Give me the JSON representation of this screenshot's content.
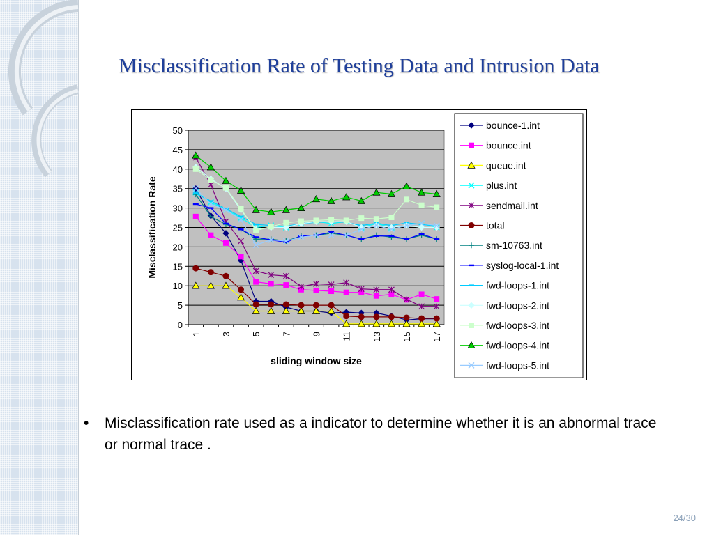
{
  "slide": {
    "title": "Misclassification Rate of Testing Data and Intrusion Data",
    "bullet": "Misclassification rate used as a indicator to determine whether it is an abnormal trace or normal trace .",
    "bullet_symbol": "•",
    "page": "24/30"
  },
  "chart_data": {
    "type": "line",
    "title": "",
    "xlabel": "sliding window size",
    "ylabel": "Misclassification Rate",
    "x": [
      1,
      2,
      3,
      4,
      5,
      6,
      7,
      8,
      9,
      10,
      11,
      12,
      13,
      14,
      15,
      16,
      17
    ],
    "x_tick_labels": [
      "1",
      "3",
      "5",
      "7",
      "9",
      "11",
      "13",
      "15",
      "17"
    ],
    "x_tick_values": [
      1,
      3,
      5,
      7,
      9,
      11,
      13,
      15,
      17
    ],
    "ylim": [
      0,
      50
    ],
    "y_ticks": [
      0,
      5,
      10,
      15,
      20,
      25,
      30,
      35,
      40,
      45,
      50
    ],
    "grid": "horizontal",
    "plot_background": "#c0c0c0",
    "legend_position": "right",
    "series": [
      {
        "name": "bounce-1.int",
        "color": "#000080",
        "marker": "diamond",
        "values": [
          35,
          28,
          23.5,
          16.5,
          6,
          6,
          4.5,
          3.5,
          3.5,
          3,
          3.2,
          3,
          3,
          2.2,
          1.2,
          1.5,
          1.5
        ]
      },
      {
        "name": "bounce.int",
        "color": "#ff00ff",
        "marker": "square",
        "values": [
          27.8,
          23,
          21,
          17.5,
          11,
          10.5,
          10.2,
          9,
          8.8,
          8.6,
          8.3,
          8.3,
          7.4,
          7.8,
          6.4,
          7.8,
          6.6
        ]
      },
      {
        "name": "queue.int",
        "color": "#ffff00",
        "marker": "triangle",
        "values": [
          10,
          10,
          10,
          7,
          3.5,
          3.5,
          3.5,
          3.5,
          3.5,
          3.5,
          0.2,
          0.2,
          0.2,
          0.2,
          0.2,
          0.2,
          0.2
        ]
      },
      {
        "name": "plus.int",
        "color": "#00ffff",
        "marker": "x",
        "values": [
          34,
          31.5,
          29.5,
          27.5,
          25,
          25.5,
          25,
          26,
          26.5,
          26,
          26.5,
          25,
          26,
          25,
          25.5,
          26,
          25
        ]
      },
      {
        "name": "sendmail.int",
        "color": "#800080",
        "marker": "star",
        "values": [
          43,
          36,
          26.5,
          21.5,
          13.8,
          12.8,
          12.5,
          9.8,
          10.5,
          10.3,
          10.8,
          9.2,
          9,
          9,
          6.5,
          4.7,
          4.7
        ]
      },
      {
        "name": "total",
        "color": "#800000",
        "marker": "circle",
        "values": [
          14.5,
          13.5,
          12.5,
          9,
          5.2,
          5.2,
          5.2,
          5,
          5,
          5,
          2.2,
          2,
          2,
          2,
          1.8,
          1.6,
          1.6
        ]
      },
      {
        "name": "sm-10763.int",
        "color": "#008080",
        "marker": "plus",
        "values": [
          33.5,
          27.8,
          25.8,
          24.5,
          22,
          22,
          21.5,
          22.8,
          23,
          23.5,
          23,
          22,
          23,
          22.5,
          22,
          23,
          22
        ]
      },
      {
        "name": "syslog-local-1.int",
        "color": "#0000ff",
        "marker": "dash",
        "values": [
          31,
          30,
          26,
          24.5,
          22.5,
          21.8,
          21.2,
          22.8,
          23,
          23.8,
          23,
          22,
          22.8,
          22.8,
          22,
          23.3,
          22
        ]
      },
      {
        "name": "fwd-loops-1.int",
        "color": "#00ccff",
        "marker": "dash",
        "values": [
          33.8,
          31.8,
          29.8,
          27.8,
          25.8,
          25.5,
          25.3,
          26,
          26.3,
          26.5,
          26.3,
          25.5,
          26.1,
          25.5,
          26.2,
          25.8,
          25.3
        ]
      },
      {
        "name": "fwd-loops-2.int",
        "color": "#ccffff",
        "marker": "diamond",
        "values": [
          40.5,
          37.5,
          35,
          29.5,
          24.5,
          25,
          25,
          26,
          26.5,
          26.5,
          26.5,
          25,
          25.5,
          25,
          25.5,
          25,
          25
        ]
      },
      {
        "name": "fwd-loops-3.int",
        "color": "#ccffcc",
        "marker": "square",
        "values": [
          40,
          37.2,
          35.2,
          29.8,
          24.2,
          25.2,
          26.2,
          26.6,
          26.8,
          27,
          26.8,
          27.4,
          27.2,
          27.6,
          32.2,
          30.7,
          30.2
        ]
      },
      {
        "name": "fwd-loops-4.int",
        "color": "#00cc00",
        "marker": "triangle",
        "values": [
          43.5,
          40.5,
          37,
          34.5,
          29.5,
          29,
          29.5,
          30,
          32.3,
          31.8,
          32.8,
          31.8,
          34,
          33.6,
          35.6,
          34,
          33.6
        ]
      },
      {
        "name": "fwd-loops-5.int",
        "color": "#99ccff",
        "marker": "x",
        "values": [
          35,
          31,
          29.5,
          27,
          20.5,
          21.8,
          21.5,
          22.5,
          23,
          23,
          23,
          24.5,
          25.5,
          24.5,
          25.5,
          26,
          25.5
        ]
      }
    ]
  }
}
